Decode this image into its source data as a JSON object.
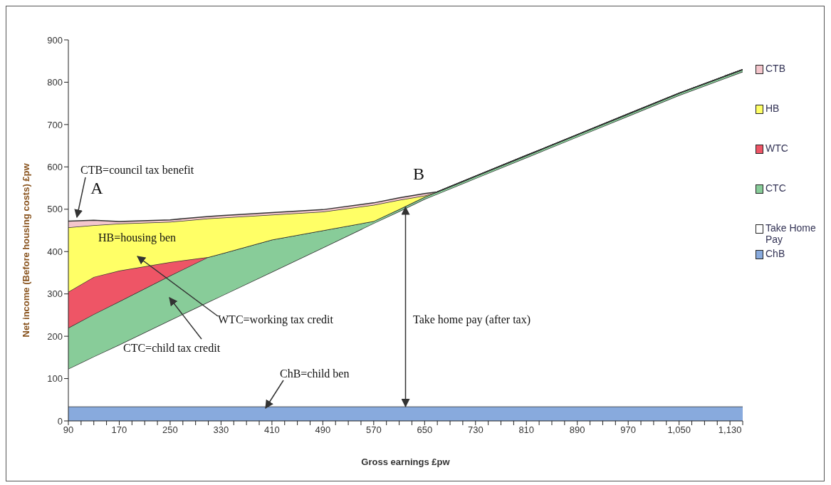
{
  "chart_data": {
    "type": "area",
    "stacked": true,
    "xlabel": "Gross earnings £pw",
    "ylabel": "Net income (Before housing costs) £pw",
    "x": [
      90,
      130,
      170,
      250,
      310,
      330,
      410,
      490,
      570,
      610,
      650,
      670,
      730,
      810,
      890,
      970,
      1050,
      1150
    ],
    "series": [
      {
        "name": "ChB",
        "color": "#88aadd",
        "values": [
          34,
          34,
          34,
          34,
          34,
          34,
          34,
          34,
          34,
          34,
          34,
          34,
          34,
          34,
          34,
          34,
          34,
          34
        ]
      },
      {
        "name": "Take Home Pay",
        "color": "#ffffff",
        "values": [
          89,
          118,
          146,
          204,
          247,
          261,
          318,
          375,
          433,
          461,
          490,
          502,
          539,
          588,
          637,
          686,
          735,
          791
        ]
      },
      {
        "name": "CTC",
        "color": "#88cc99",
        "values": [
          97,
          100,
          102,
          105,
          106,
          100,
          76,
          41,
          5,
          5,
          5,
          5,
          5,
          5,
          5,
          5,
          5,
          5
        ]
      },
      {
        "name": "WTC",
        "color": "#ee5566",
        "values": [
          85,
          88,
          73,
          32,
          0,
          0,
          0,
          0,
          0,
          0,
          0,
          0,
          0,
          0,
          0,
          0,
          0,
          0
        ]
      },
      {
        "name": "HB",
        "color": "#ffff66",
        "values": [
          152,
          122,
          111,
          95,
          91,
          85,
          59,
          44,
          38,
          22,
          3,
          0,
          0,
          0,
          0,
          0,
          0,
          0
        ]
      },
      {
        "name": "CTB",
        "color": "#f4c6cc",
        "values": [
          15,
          12,
          5,
          5,
          5,
          5,
          5,
          5,
          5,
          5,
          5,
          0,
          0,
          0,
          0,
          0,
          0,
          0
        ]
      }
    ],
    "xlim": [
      90,
      1150
    ],
    "xticks": [
      90,
      {
        "value": 110,
        "label": null
      },
      {
        "value": 130,
        "label": null
      },
      {
        "value": 150,
        "label": null
      },
      170,
      {
        "value": 190,
        "label": null
      },
      {
        "value": 210,
        "label": null
      },
      {
        "value": 230,
        "label": null
      },
      250,
      {
        "value": 270,
        "label": null
      },
      {
        "value": 290,
        "label": null
      },
      {
        "value": 310,
        "label": null
      },
      330,
      {
        "value": 350,
        "label": null
      },
      {
        "value": 370,
        "label": null
      },
      {
        "value": 390,
        "label": null
      },
      410,
      {
        "value": 430,
        "label": null
      },
      {
        "value": 450,
        "label": null
      },
      {
        "value": 470,
        "label": null
      },
      490,
      {
        "value": 510,
        "label": null
      },
      {
        "value": 530,
        "label": null
      },
      {
        "value": 550,
        "label": null
      },
      570,
      {
        "value": 590,
        "label": null
      },
      {
        "value": 610,
        "label": null
      },
      {
        "value": 630,
        "label": null
      },
      650,
      {
        "value": 670,
        "label": null
      },
      {
        "value": 690,
        "label": null
      },
      {
        "value": 710,
        "label": null
      },
      730,
      {
        "value": 750,
        "label": null
      },
      {
        "value": 770,
        "label": null
      },
      {
        "value": 790,
        "label": null
      },
      810,
      {
        "value": 830,
        "label": null
      },
      {
        "value": 850,
        "label": null
      },
      {
        "value": 870,
        "label": null
      },
      890,
      {
        "value": 910,
        "label": null
      },
      {
        "value": 930,
        "label": null
      },
      {
        "value": 950,
        "label": null
      },
      970,
      {
        "value": 990,
        "label": null
      },
      {
        "value": 1010,
        "label": null
      },
      {
        "value": 1030,
        "label": null
      },
      {
        "value": 1050,
        "label": "1,050"
      },
      {
        "value": 1070,
        "label": null
      },
      {
        "value": 1090,
        "label": null
      },
      {
        "value": 1110,
        "label": null
      },
      {
        "value": 1130,
        "label": "1,130"
      },
      {
        "value": 1150,
        "label": null
      }
    ],
    "ylim": [
      0,
      900
    ],
    "yticks": [
      0,
      100,
      200,
      300,
      400,
      500,
      600,
      700,
      800,
      900
    ],
    "legend": "right",
    "marker": "none",
    "line_style": "solid",
    "annotations": [
      "CTB=council tax benefit",
      "A",
      {
        "text": "B",
        "x": 620,
        "y": 505
      },
      "HB=housing ben",
      "WTC=working tax credit",
      "CTC=child tax credit",
      "ChB=child ben",
      "Take home pay (after tax)"
    ]
  }
}
